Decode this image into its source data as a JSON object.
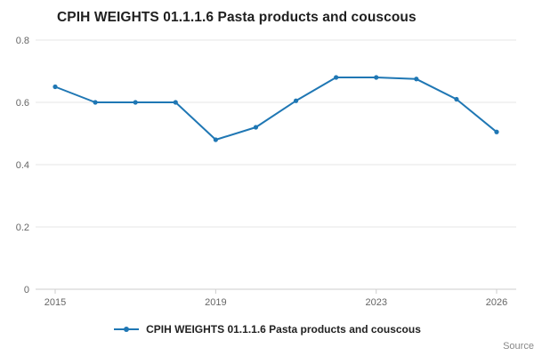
{
  "page": {
    "title": "CPIH WEIGHTS 01.1.1.6 Pasta products and couscous",
    "source_label": "Source:"
  },
  "legend": {
    "label": "CPIH WEIGHTS 01.1.1.6 Pasta products and couscous"
  },
  "colors": {
    "line": "#1f77b4",
    "grid": "#e6e6e6",
    "axis": "#cccccc",
    "tick_text": "#666666"
  },
  "chart_data": {
    "type": "line",
    "title": "CPIH WEIGHTS 01.1.1.6 Pasta products and couscous",
    "series": [
      {
        "name": "CPIH WEIGHTS 01.1.1.6 Pasta products and couscous",
        "values": [
          0.65,
          0.6,
          0.6,
          0.6,
          0.48,
          0.52,
          0.605,
          0.68,
          0.68,
          0.675,
          0.61,
          0.505
        ]
      }
    ],
    "x": [
      2015,
      2016,
      2017,
      2018,
      2019,
      2020,
      2021,
      2022,
      2023,
      2024,
      2025,
      2026
    ],
    "xlabel": "",
    "ylabel": "",
    "ylim": [
      0,
      0.8
    ],
    "yticks": [
      0,
      0.2,
      0.4,
      0.6,
      0.8
    ],
    "ytick_labels": [
      "0",
      "0.2",
      "0.4",
      "0.6",
      "0.8"
    ],
    "xticks": [
      2015,
      2019,
      2023,
      2026
    ],
    "grid": true,
    "legend_position": "bottom"
  }
}
